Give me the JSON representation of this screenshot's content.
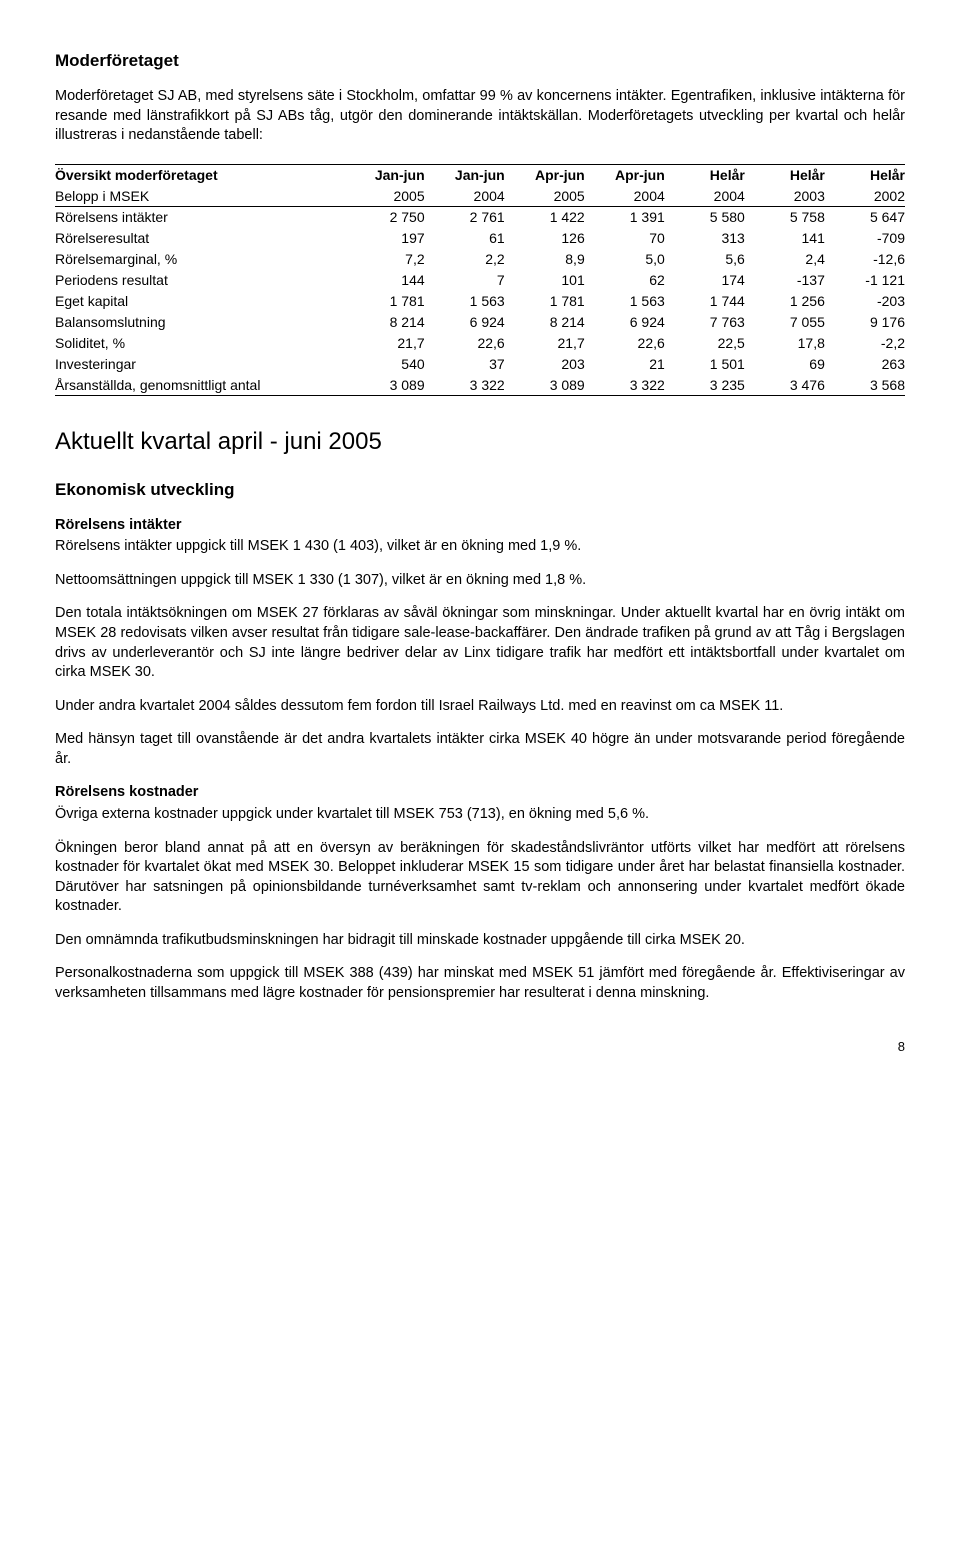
{
  "h_moder": "Moderföretaget",
  "p_intro": "Moderföretaget SJ AB, med styrelsens säte i Stockholm, omfattar 99 % av koncernens intäkter. Egentrafiken, inklusive intäkterna för resande med länstrafikkort på SJ ABs tåg, utgör den dominerande intäktskällan. Moderföretagets utveckling per kvartal och helår illustreras i nedanstående tabell:",
  "table": {
    "header1": [
      "Översikt moderföretaget",
      "Jan-jun",
      "Jan-jun",
      "Apr-jun",
      "Apr-jun",
      "Helår",
      "Helår",
      "Helår"
    ],
    "header2": [
      "Belopp i MSEK",
      "2005",
      "2004",
      "2005",
      "2004",
      "2004",
      "2003",
      "2002"
    ],
    "rows": [
      [
        "Rörelsens intäkter",
        "2 750",
        "2 761",
        "1 422",
        "1 391",
        "5 580",
        "5 758",
        "5 647"
      ],
      [
        "Rörelseresultat",
        "197",
        "61",
        "126",
        "70",
        "313",
        "141",
        "-709"
      ],
      [
        "Rörelsemarginal, %",
        "7,2",
        "2,2",
        "8,9",
        "5,0",
        "5,6",
        "2,4",
        "-12,6"
      ],
      [
        "Periodens resultat",
        "144",
        "7",
        "101",
        "62",
        "174",
        "-137",
        "-1 121"
      ],
      [
        "Eget kapital",
        "1 781",
        "1 563",
        "1 781",
        "1 563",
        "1 744",
        "1 256",
        "-203"
      ],
      [
        "Balansomslutning",
        "8 214",
        "6 924",
        "8 214",
        "6 924",
        "7 763",
        "7 055",
        "9 176"
      ],
      [
        "Soliditet, %",
        "21,7",
        "22,6",
        "21,7",
        "22,6",
        "22,5",
        "17,8",
        "-2,2"
      ],
      [
        "Investeringar",
        "540",
        "37",
        "203",
        "21",
        "1 501",
        "69",
        "263"
      ],
      [
        "Årsanställda, genomsnittligt antal",
        "3 089",
        "3 322",
        "3 089",
        "3 322",
        "3 235",
        "3 476",
        "3 568"
      ]
    ]
  },
  "h_kvartal": "Aktuellt kvartal april - juni 2005",
  "h_ekon": "Ekonomisk utveckling",
  "h_intakter": "Rörelsens intäkter",
  "p_int1": "Rörelsens intäkter uppgick till MSEK  1 430 (1 403), vilket är en ökning med 1,9 %.",
  "p_int2": "Nettoomsättningen uppgick till MSEK 1 330 (1 307), vilket är en ökning med 1,8 %.",
  "p_int3": "Den totala intäktsökningen om MSEK 27 förklaras av såväl ökningar som minskningar. Under aktuellt kvartal har en övrig intäkt om MSEK 28 redovisats vilken avser resultat från tidigare sale-lease-backaffärer. Den ändrade trafiken på grund av att Tåg i Bergslagen drivs av underleverantör och SJ inte längre bedriver delar av Linx tidigare trafik har medfört ett intäktsbortfall under kvartalet om cirka MSEK 30.",
  "p_int4": "Under andra kvartalet 2004 såldes dessutom fem fordon till Israel Railways Ltd. med en reavinst om ca MSEK 11.",
  "p_int5": "Med hänsyn taget till ovanstående är det andra kvartalets intäkter cirka MSEK 40 högre än under motsvarande period föregående år.",
  "h_kost": "Rörelsens kostnader",
  "p_k1": "Övriga externa kostnader uppgick under kvartalet till MSEK 753 (713), en ökning med 5,6 %.",
  "p_k2": "Ökningen beror bland annat på att en översyn av beräkningen för skadeståndslivräntor utförts vilket har medfört att rörelsens kostnader för kvartalet ökat med MSEK 30. Beloppet inkluderar MSEK 15 som tidigare under året har belastat finansiella kostnader. Därutöver har satsningen på opinionsbildande turnéverksamhet samt tv-reklam och annonsering under kvartalet medfört ökade kostnader.",
  "p_k3": "Den omnämnda trafikutbudsminskningen har bidragit till minskade kostnader uppgående till cirka MSEK 20.",
  "p_k4": "Personalkostnaderna som uppgick till MSEK 388 (439) har minskat med MSEK 51 jämfört med föregående år. Effektiviseringar av verksamheten tillsammans med lägre kostnader för pensionspremier har resulterat i denna minskning.",
  "page_number": "8"
}
